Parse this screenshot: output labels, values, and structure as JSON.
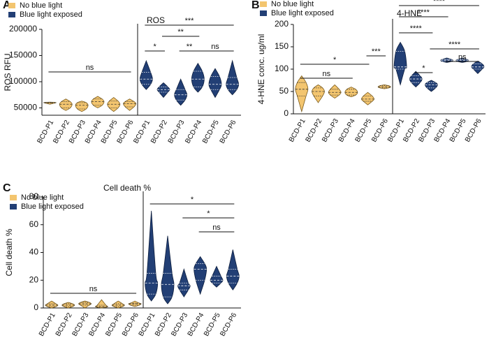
{
  "chart_data": [
    {
      "type": "violin",
      "panel": "A",
      "title": "ROS",
      "ylabel": "ROS RFU",
      "categories": [
        "BCD-P1",
        "BCD-P2",
        "BCD-P3",
        "BCD-P4",
        "BCD-P5",
        "BCD-P6"
      ],
      "ylim": [
        36000,
        200000
      ],
      "yticks": [
        50000,
        100000,
        150000,
        200000
      ],
      "series": [
        {
          "name": "No blue light",
          "color": "#f3c56f",
          "values": [
            60000,
            57000,
            55000,
            62000,
            57000,
            58000
          ],
          "q1": [
            59000,
            50000,
            48000,
            55000,
            50000,
            52000
          ],
          "q3": [
            60500,
            62000,
            60000,
            67000,
            63000,
            62000
          ],
          "min": [
            57000,
            45000,
            43000,
            50000,
            43000,
            45000
          ],
          "max": [
            61000,
            67000,
            63000,
            72000,
            70000,
            67000
          ]
        },
        {
          "name": "Blue light exposed",
          "color": "#223f75",
          "values": [
            105000,
            85000,
            75000,
            105000,
            95000,
            95000
          ],
          "q1": [
            95000,
            80000,
            65000,
            90000,
            85000,
            85000
          ],
          "q3": [
            118000,
            90000,
            85000,
            120000,
            110000,
            108000
          ],
          "min": [
            85000,
            70000,
            55000,
            80000,
            70000,
            75000
          ],
          "max": [
            140000,
            98000,
            105000,
            135000,
            125000,
            140000
          ]
        }
      ],
      "annotations": [
        {
          "text": "ns",
          "series": 0,
          "from": 0,
          "to": 5
        },
        {
          "text": "*",
          "series": 1,
          "from": 0,
          "to": 1
        },
        {
          "text": "**",
          "series": 1,
          "from": 1,
          "to": 3
        },
        {
          "text": "***",
          "series": 1,
          "from": 0,
          "to": 5
        },
        {
          "text": "**",
          "series": 1,
          "from": 2,
          "to": 3
        },
        {
          "text": "ns",
          "series": 1,
          "from": 3,
          "to": 5
        }
      ]
    },
    {
      "type": "violin",
      "panel": "B",
      "title": "4-HNE",
      "ylabel": "4-HNE conc. ug/ml",
      "categories": [
        "BCD-P1",
        "BCD-P2",
        "BCD-P3",
        "BCD-P4",
        "BCD-P5",
        "BCD-P6"
      ],
      "ylim": [
        0,
        200
      ],
      "yticks": [
        0,
        50,
        100,
        150,
        200
      ],
      "series": [
        {
          "name": "No blue light",
          "color": "#f3c56f",
          "values": [
            55,
            50,
            48,
            48,
            33,
            60
          ],
          "q1": [
            40,
            40,
            42,
            42,
            28,
            58
          ],
          "q3": [
            70,
            58,
            55,
            55,
            40,
            63
          ],
          "min": [
            5,
            25,
            35,
            38,
            20,
            56
          ],
          "max": [
            85,
            65,
            65,
            60,
            48,
            65
          ]
        },
        {
          "name": "Blue light exposed",
          "color": "#223f75",
          "values": [
            105,
            78,
            65,
            120,
            120,
            105
          ],
          "q1": [
            100,
            70,
            58,
            117,
            117,
            100
          ],
          "q3": [
            140,
            85,
            70,
            122,
            122,
            112
          ],
          "min": [
            65,
            60,
            50,
            115,
            115,
            90
          ],
          "max": [
            160,
            95,
            75,
            125,
            125,
            118
          ]
        }
      ],
      "annotations": [
        {
          "text": "*",
          "series": 0,
          "from": 0,
          "to": 4
        },
        {
          "text": "ns",
          "series": 0,
          "from": 0,
          "to": 3
        },
        {
          "text": "***",
          "series": 0,
          "from": 4,
          "to": 5
        },
        {
          "text": "****",
          "series": 1,
          "from": 0,
          "to": 5
        },
        {
          "text": "****",
          "series": 1,
          "from": 0,
          "to": 3
        },
        {
          "text": "****",
          "series": 1,
          "from": 0,
          "to": 2
        },
        {
          "text": "*",
          "series": 1,
          "from": 1,
          "to": 2
        },
        {
          "text": "****",
          "series": 1,
          "from": 2,
          "to": 5
        },
        {
          "text": "ns",
          "series": 1,
          "from": 3,
          "to": 5
        }
      ]
    },
    {
      "type": "violin",
      "panel": "C",
      "title": "Cell death %",
      "ylabel": "Cell death %",
      "categories": [
        "BCD-P1",
        "BCD-P2",
        "BCD-P3",
        "BCD-P4",
        "BCD-P5",
        "BCD-P6"
      ],
      "ylim": [
        0,
        80
      ],
      "yticks": [
        0,
        20,
        40,
        60,
        80
      ],
      "series": [
        {
          "name": "No blue light",
          "color": "#f3c56f",
          "values": [
            2,
            2,
            3,
            1,
            2,
            3
          ],
          "q1": [
            1,
            1,
            2,
            0.5,
            1,
            2
          ],
          "q3": [
            3,
            3,
            4,
            2,
            3,
            3.5
          ],
          "min": [
            0,
            0,
            0,
            0,
            0,
            1
          ],
          "max": [
            5,
            4,
            5,
            6,
            5,
            5
          ]
        },
        {
          "name": "Blue light exposed",
          "color": "#223f75",
          "values": [
            18,
            17,
            16,
            28,
            20,
            23
          ],
          "q1": [
            10,
            8,
            13,
            20,
            18,
            18
          ],
          "q3": [
            25,
            25,
            18,
            32,
            23,
            28
          ],
          "min": [
            5,
            3,
            8,
            10,
            15,
            13
          ],
          "max": [
            70,
            52,
            28,
            37,
            30,
            42
          ]
        }
      ],
      "annotations": [
        {
          "text": "ns",
          "series": 0,
          "from": 0,
          "to": 5
        },
        {
          "text": "*",
          "series": 1,
          "from": 0,
          "to": 5
        },
        {
          "text": "*",
          "series": 1,
          "from": 2,
          "to": 5
        },
        {
          "text": "ns",
          "series": 1,
          "from": 3,
          "to": 5
        }
      ]
    }
  ]
}
